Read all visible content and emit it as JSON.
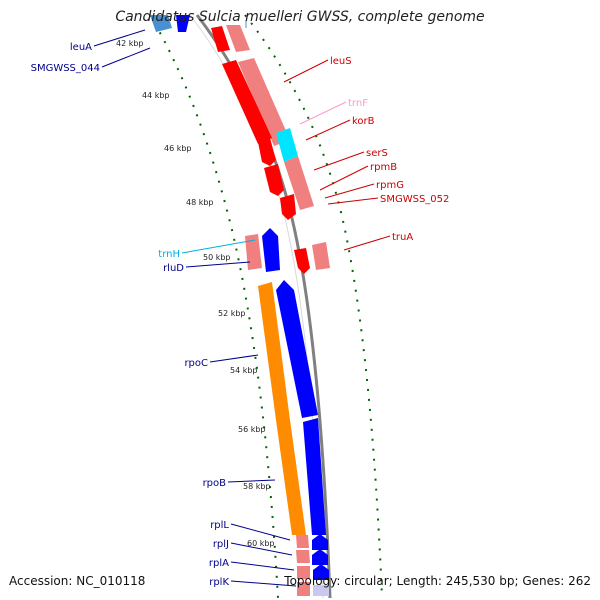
{
  "title": "Candidatus Sulcia muelleri GWSS, complete genome",
  "footer": {
    "accession": "Accession: NC_010118",
    "summary": "Topology: circular; Length: 245,530 bp; Genes: 262"
  },
  "colors": {
    "forward_gene": "#ff0000",
    "forward_cds_box": "#f08080",
    "reverse_gene": "#0000ff",
    "reverse_cds_box": "#ff8c00",
    "trna": "#00e5ff",
    "backbone": "#808080",
    "tick": "#006400",
    "label_forward": "#cc0000",
    "label_reverse": "#00008b",
    "label_trna": "#ff99cc",
    "label_trnh": "#00b0e0"
  },
  "ticks": [
    "42 kbp",
    "44 kbp",
    "46 kbp",
    "48 kbp",
    "50 kbp",
    "52 kbp",
    "54 kbp",
    "56 kbp",
    "58 kbp",
    "60 kbp"
  ],
  "labels_left": [
    {
      "text": "leuA",
      "color": "reverse"
    },
    {
      "text": "SMGWSS_044",
      "color": "reverse"
    },
    {
      "text": "trnH",
      "color": "trnh"
    },
    {
      "text": "rluD",
      "color": "reverse"
    },
    {
      "text": "rpoC",
      "color": "reverse"
    },
    {
      "text": "rpoB",
      "color": "reverse"
    },
    {
      "text": "rplL",
      "color": "reverse"
    },
    {
      "text": "rplJ",
      "color": "reverse"
    },
    {
      "text": "rplA",
      "color": "reverse"
    },
    {
      "text": "rplK",
      "color": "reverse"
    }
  ],
  "labels_right": [
    {
      "text": "leuS",
      "color": "forward"
    },
    {
      "text": "trnF",
      "color": "trna"
    },
    {
      "text": "korB",
      "color": "forward"
    },
    {
      "text": "serS",
      "color": "forward"
    },
    {
      "text": "rpmB",
      "color": "forward"
    },
    {
      "text": "rpmG",
      "color": "forward"
    },
    {
      "text": "SMGWSS_052",
      "color": "forward"
    },
    {
      "text": "truA",
      "color": "forward"
    }
  ]
}
